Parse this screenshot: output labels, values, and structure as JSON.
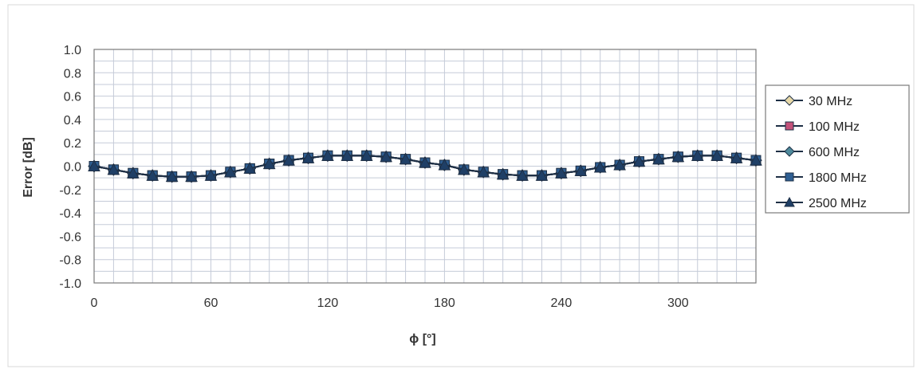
{
  "chart_data": {
    "type": "line",
    "title": "",
    "xlabel": "ϕ [°]",
    "ylabel": "Error [dB]",
    "xlim": [
      0,
      340
    ],
    "ylim": [
      -1.0,
      1.0
    ],
    "xticks": [
      0,
      60,
      120,
      180,
      240,
      300
    ],
    "xtick_labels": [
      "0",
      "60",
      "120",
      "180",
      "240",
      "300"
    ],
    "yticks": [
      1.0,
      0.8,
      0.6,
      0.4,
      0.2,
      0.0,
      -0.2,
      -0.4,
      -0.6,
      -0.8,
      -1.0
    ],
    "ytick_labels": [
      "1.0",
      "0.8",
      "0.6",
      "0.4",
      "0.2",
      "0.0",
      "-0.2",
      "-0.4",
      "-0.6",
      "-0.8",
      "-1.0"
    ],
    "grid": true,
    "legend_position": "right",
    "x": [
      0,
      10,
      20,
      30,
      40,
      50,
      60,
      70,
      80,
      90,
      100,
      110,
      120,
      130,
      140,
      150,
      160,
      170,
      180,
      190,
      200,
      210,
      220,
      230,
      240,
      250,
      260,
      270,
      280,
      290,
      300,
      310,
      320,
      330,
      340
    ],
    "series": [
      {
        "name": "30 MHz",
        "color": "#e8d9a8",
        "marker": "diamond",
        "values": [
          0.0,
          -0.03,
          -0.06,
          -0.08,
          -0.09,
          -0.09,
          -0.08,
          -0.05,
          -0.02,
          0.02,
          0.05,
          0.07,
          0.09,
          0.09,
          0.09,
          0.08,
          0.06,
          0.03,
          0.01,
          -0.03,
          -0.05,
          -0.07,
          -0.08,
          -0.08,
          -0.06,
          -0.04,
          -0.01,
          0.01,
          0.04,
          0.06,
          0.08,
          0.09,
          0.09,
          0.07,
          0.05
        ]
      },
      {
        "name": "100 MHz",
        "color": "#c4527a",
        "marker": "square",
        "values": [
          0.0,
          -0.03,
          -0.06,
          -0.08,
          -0.09,
          -0.09,
          -0.08,
          -0.05,
          -0.02,
          0.02,
          0.05,
          0.07,
          0.09,
          0.09,
          0.09,
          0.08,
          0.06,
          0.03,
          0.01,
          -0.03,
          -0.05,
          -0.07,
          -0.08,
          -0.08,
          -0.06,
          -0.04,
          -0.01,
          0.01,
          0.04,
          0.06,
          0.08,
          0.09,
          0.09,
          0.07,
          0.05
        ]
      },
      {
        "name": "600 MHz",
        "color": "#4f8a9c",
        "marker": "diamond",
        "values": [
          0.0,
          -0.03,
          -0.06,
          -0.08,
          -0.09,
          -0.09,
          -0.08,
          -0.05,
          -0.02,
          0.02,
          0.05,
          0.07,
          0.09,
          0.09,
          0.09,
          0.08,
          0.06,
          0.03,
          0.01,
          -0.03,
          -0.05,
          -0.07,
          -0.08,
          -0.08,
          -0.06,
          -0.04,
          -0.01,
          0.01,
          0.04,
          0.06,
          0.08,
          0.09,
          0.09,
          0.07,
          0.05
        ]
      },
      {
        "name": "1800 MHz",
        "color": "#2f5f93",
        "marker": "square",
        "values": [
          0.0,
          -0.03,
          -0.06,
          -0.08,
          -0.09,
          -0.09,
          -0.08,
          -0.05,
          -0.02,
          0.02,
          0.05,
          0.07,
          0.09,
          0.09,
          0.09,
          0.08,
          0.06,
          0.03,
          0.01,
          -0.03,
          -0.05,
          -0.07,
          -0.08,
          -0.08,
          -0.06,
          -0.04,
          -0.01,
          0.01,
          0.04,
          0.06,
          0.08,
          0.09,
          0.09,
          0.07,
          0.05
        ]
      },
      {
        "name": "2500 MHz",
        "color": "#1f3f66",
        "marker": "triangle",
        "values": [
          0.0,
          -0.03,
          -0.06,
          -0.08,
          -0.09,
          -0.09,
          -0.08,
          -0.05,
          -0.02,
          0.02,
          0.05,
          0.07,
          0.09,
          0.09,
          0.09,
          0.08,
          0.06,
          0.03,
          0.01,
          -0.03,
          -0.05,
          -0.07,
          -0.08,
          -0.08,
          -0.06,
          -0.04,
          -0.01,
          0.01,
          0.04,
          0.06,
          0.08,
          0.09,
          0.09,
          0.07,
          0.05
        ]
      }
    ]
  }
}
